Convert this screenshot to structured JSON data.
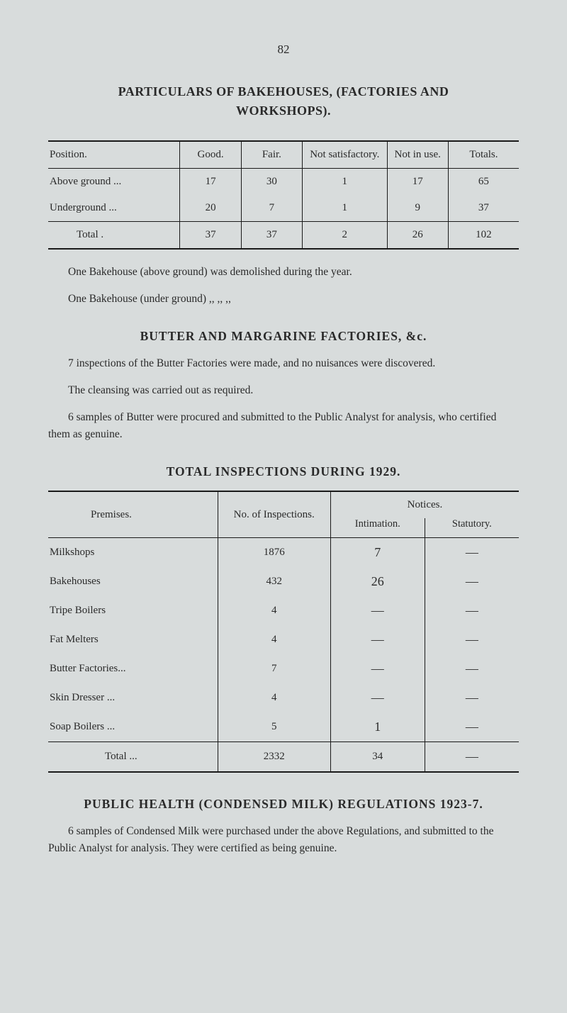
{
  "page_number": "82",
  "title_line1": "PARTICULARS OF BAKEHOUSES, (FACTORIES AND",
  "title_line2": "WORKSHOPS).",
  "table1": {
    "headers": {
      "position": "Position.",
      "good": "Good.",
      "fair": "Fair.",
      "not_sat": "Not satisfactory.",
      "not_in_use": "Not in use.",
      "totals": "Totals."
    },
    "rows": [
      {
        "position": "Above ground      ...",
        "good": "17",
        "fair": "30",
        "not_sat": "1",
        "not_in_use": "17",
        "totals": "65"
      },
      {
        "position": "Underground        ...",
        "good": "20",
        "fair": "7",
        "not_sat": "1",
        "not_in_use": "9",
        "totals": "37"
      }
    ],
    "total_row": {
      "position": "Total          .",
      "good": "37",
      "fair": "37",
      "not_sat": "2",
      "not_in_use": "26",
      "totals": "102"
    }
  },
  "para1": "One Bakehouse (above ground) was demolished during the year.",
  "para2": "One Bakehouse (under ground)         ,,           ,,           ,,",
  "section2_title": "BUTTER AND MARGARINE FACTORIES, &c.",
  "para3": "7 inspections of the Butter Factories were made, and no nuisances were discovered.",
  "para4": "The cleansing was carried out as required.",
  "para5": "6 samples of Butter were procured and submitted to the Public Analyst for analysis, who certified them as genuine.",
  "section3_title": "TOTAL INSPECTIONS DURING 1929.",
  "table2": {
    "headers": {
      "premises": "Premises.",
      "inspections": "No. of Inspections.",
      "notices": "Notices.",
      "intimation": "Intimation.",
      "statutory": "Statutory."
    },
    "rows": [
      {
        "premises": "Milkshops",
        "inspections": "1876",
        "intimation": "7",
        "statutory": "—"
      },
      {
        "premises": "Bakehouses",
        "inspections": "432",
        "intimation": "26",
        "statutory": "—"
      },
      {
        "premises": "Tripe Boilers",
        "inspections": "4",
        "intimation": "—",
        "statutory": "—"
      },
      {
        "premises": "Fat Melters",
        "inspections": "4",
        "intimation": "—",
        "statutory": "—"
      },
      {
        "premises": "Butter Factories...",
        "inspections": "7",
        "intimation": "—",
        "statutory": "—"
      },
      {
        "premises": "Skin Dresser ...",
        "inspections": "4",
        "intimation": "—",
        "statutory": "—"
      },
      {
        "premises": "Soap Boilers ...",
        "inspections": "5",
        "intimation": "1",
        "statutory": "—"
      }
    ],
    "total_row": {
      "premises": "Total   ...",
      "inspections": "2332",
      "intimation": "34",
      "statutory": "—"
    }
  },
  "section4_title": "PUBLIC HEALTH (CONDENSED MILK) REGULATIONS 1923-7.",
  "para6": "6 samples of Condensed Milk were purchased under the above Regulations, and submitted to the Public Analyst for analysis. They were certified as being genuine."
}
